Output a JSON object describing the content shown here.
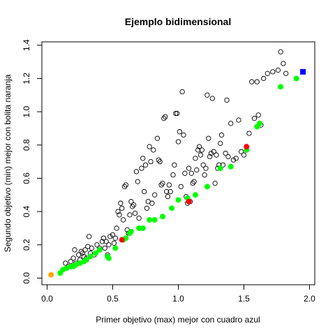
{
  "chart_data": {
    "type": "scatter",
    "title": "Ejemplo bidimensional",
    "xlabel": "Primer objetivo (max) mejor con cuadro azul",
    "ylabel": "Segundo objetivo (min) mejor con bolita naranja",
    "xlim": [
      -0.04,
      2.04
    ],
    "ylim": [
      -0.04,
      1.42
    ],
    "xticks": [
      0.0,
      0.5,
      1.0,
      1.5,
      2.0
    ],
    "xtick_labels": [
      "0.0",
      "0.5",
      "1.0",
      "1.5",
      "2.0"
    ],
    "yticks": [
      0.0,
      0.2,
      0.4,
      0.6,
      0.8,
      1.0,
      1.2,
      1.4
    ],
    "ytick_labels": [
      "0.0",
      "0.2",
      "0.4",
      "0.6",
      "0.8",
      "1.0",
      "1.2",
      "1.4"
    ],
    "grid": false,
    "legend": "none",
    "series": [
      {
        "marker": "open-circle",
        "color": "#000000",
        "points": [
          [
            0.14,
            0.09
          ],
          [
            0.16,
            0.07
          ],
          [
            0.18,
            0.1
          ],
          [
            0.2,
            0.12
          ],
          [
            0.21,
            0.17
          ],
          [
            0.22,
            0.09
          ],
          [
            0.24,
            0.14
          ],
          [
            0.25,
            0.11
          ],
          [
            0.26,
            0.16
          ],
          [
            0.27,
            0.15
          ],
          [
            0.28,
            0.13
          ],
          [
            0.29,
            0.17
          ],
          [
            0.3,
            0.12
          ],
          [
            0.31,
            0.19
          ],
          [
            0.32,
            0.25
          ],
          [
            0.33,
            0.15
          ],
          [
            0.34,
            0.18
          ],
          [
            0.36,
            0.14
          ],
          [
            0.38,
            0.2
          ],
          [
            0.4,
            0.18
          ],
          [
            0.42,
            0.22
          ],
          [
            0.43,
            0.24
          ],
          [
            0.44,
            0.18
          ],
          [
            0.45,
            0.22
          ],
          [
            0.46,
            0.14
          ],
          [
            0.47,
            0.2
          ],
          [
            0.48,
            0.25
          ],
          [
            0.5,
            0.26
          ],
          [
            0.51,
            0.21
          ],
          [
            0.52,
            0.24
          ],
          [
            0.53,
            0.3
          ],
          [
            0.54,
            0.4
          ],
          [
            0.55,
            0.38
          ],
          [
            0.56,
            0.45
          ],
          [
            0.57,
            0.42
          ],
          [
            0.58,
            0.35
          ],
          [
            0.59,
            0.55
          ],
          [
            0.6,
            0.56
          ],
          [
            0.61,
            0.29
          ],
          [
            0.62,
            0.27
          ],
          [
            0.63,
            0.38
          ],
          [
            0.64,
            0.46
          ],
          [
            0.65,
            0.43
          ],
          [
            0.66,
            0.44
          ],
          [
            0.67,
            0.39
          ],
          [
            0.68,
            0.64
          ],
          [
            0.69,
            0.58
          ],
          [
            0.7,
            0.36
          ],
          [
            0.72,
            0.66
          ],
          [
            0.73,
            0.72
          ],
          [
            0.74,
            0.52
          ],
          [
            0.75,
            0.68
          ],
          [
            0.76,
            0.42
          ],
          [
            0.77,
            0.46
          ],
          [
            0.78,
            0.79
          ],
          [
            0.79,
            0.7
          ],
          [
            0.8,
            0.45
          ],
          [
            0.81,
            0.77
          ],
          [
            0.82,
            0.5
          ],
          [
            0.84,
            0.84
          ],
          [
            0.85,
            0.71
          ],
          [
            0.86,
            0.7
          ],
          [
            0.87,
            0.56
          ],
          [
            0.88,
            0.57
          ],
          [
            0.89,
            0.96
          ],
          [
            0.9,
            0.97
          ],
          [
            0.91,
            0.52
          ],
          [
            0.92,
            0.49
          ],
          [
            0.93,
            0.56
          ],
          [
            0.94,
            0.52
          ],
          [
            0.95,
            0.42
          ],
          [
            0.96,
            0.62
          ],
          [
            0.97,
            0.68
          ],
          [
            0.98,
            0.99
          ],
          [
            0.99,
            0.99
          ],
          [
            1.0,
            0.82
          ],
          [
            1.01,
            0.88
          ],
          [
            1.02,
            0.55
          ],
          [
            1.03,
            1.12
          ],
          [
            1.04,
            0.86
          ],
          [
            1.05,
            0.63
          ],
          [
            1.06,
            0.49
          ],
          [
            1.07,
            0.45
          ],
          [
            1.08,
            0.66
          ],
          [
            1.09,
            0.46
          ],
          [
            1.1,
            0.63
          ],
          [
            1.11,
            0.57
          ],
          [
            1.12,
            0.58
          ],
          [
            1.13,
            0.72
          ],
          [
            1.14,
            0.65
          ],
          [
            1.15,
            0.77
          ],
          [
            1.16,
            0.79
          ],
          [
            1.17,
            0.74
          ],
          [
            1.18,
            0.77
          ],
          [
            1.19,
            0.68
          ],
          [
            1.2,
            0.62
          ],
          [
            1.21,
            0.66
          ],
          [
            1.22,
            1.1
          ],
          [
            1.23,
            0.84
          ],
          [
            1.24,
            0.73
          ],
          [
            1.25,
            0.75
          ],
          [
            1.26,
            1.08
          ],
          [
            1.27,
            0.76
          ],
          [
            1.28,
            0.57
          ],
          [
            1.29,
            0.74
          ],
          [
            1.3,
            0.66
          ],
          [
            1.31,
            0.68
          ],
          [
            1.32,
            0.81
          ],
          [
            1.33,
            0.86
          ],
          [
            1.34,
            0.68
          ],
          [
            1.36,
            0.75
          ],
          [
            1.37,
            1.07
          ],
          [
            1.38,
            0.73
          ],
          [
            1.4,
            0.93
          ],
          [
            1.42,
            0.71
          ],
          [
            1.44,
            0.72
          ],
          [
            1.46,
            0.95
          ],
          [
            1.48,
            0.76
          ],
          [
            1.5,
            0.74
          ],
          [
            1.52,
            0.79
          ],
          [
            1.54,
            0.87
          ],
          [
            1.56,
            1.18
          ],
          [
            1.58,
            0.96
          ],
          [
            1.6,
            1.18
          ],
          [
            1.61,
            0.98
          ],
          [
            1.63,
            0.92
          ],
          [
            1.65,
            1.2
          ],
          [
            1.68,
            1.23
          ],
          [
            1.72,
            1.24
          ],
          [
            1.76,
            1.25
          ],
          [
            1.78,
            1.36
          ],
          [
            1.8,
            1.29
          ],
          [
            1.82,
            1.23
          ]
        ]
      },
      {
        "marker": "filled-circle",
        "color": "#00ff00",
        "points": [
          [
            0.1,
            0.03
          ],
          [
            0.12,
            0.05
          ],
          [
            0.15,
            0.06
          ],
          [
            0.18,
            0.07
          ],
          [
            0.2,
            0.07
          ],
          [
            0.22,
            0.08
          ],
          [
            0.25,
            0.09
          ],
          [
            0.28,
            0.1
          ],
          [
            0.3,
            0.11
          ],
          [
            0.33,
            0.13
          ],
          [
            0.37,
            0.15
          ],
          [
            0.4,
            0.17
          ],
          [
            0.46,
            0.13
          ],
          [
            0.47,
            0.12
          ],
          [
            0.52,
            0.18
          ],
          [
            0.58,
            0.23
          ],
          [
            0.6,
            0.24
          ],
          [
            0.63,
            0.27
          ],
          [
            0.64,
            0.28
          ],
          [
            0.7,
            0.3
          ],
          [
            0.73,
            0.3
          ],
          [
            0.78,
            0.35
          ],
          [
            0.82,
            0.35
          ],
          [
            0.88,
            0.37
          ],
          [
            0.95,
            0.42
          ],
          [
            1.0,
            0.47
          ],
          [
            1.07,
            0.48
          ],
          [
            1.13,
            0.5
          ],
          [
            1.22,
            0.55
          ],
          [
            1.32,
            0.66
          ],
          [
            1.4,
            0.67
          ],
          [
            1.52,
            0.77
          ],
          [
            1.6,
            0.91
          ],
          [
            1.62,
            0.93
          ],
          [
            1.78,
            1.15
          ],
          [
            1.9,
            1.2
          ]
        ]
      },
      {
        "marker": "filled-circle",
        "color": "#ff0000",
        "points": [
          [
            0.57,
            0.23
          ],
          [
            1.08,
            0.46
          ],
          [
            1.52,
            0.79
          ]
        ]
      },
      {
        "marker": "filled-circle",
        "color": "#ffa500",
        "points": [
          [
            0.03,
            0.02
          ]
        ]
      },
      {
        "marker": "filled-square",
        "color": "#0000ff",
        "points": [
          [
            1.95,
            1.24
          ]
        ]
      }
    ]
  }
}
